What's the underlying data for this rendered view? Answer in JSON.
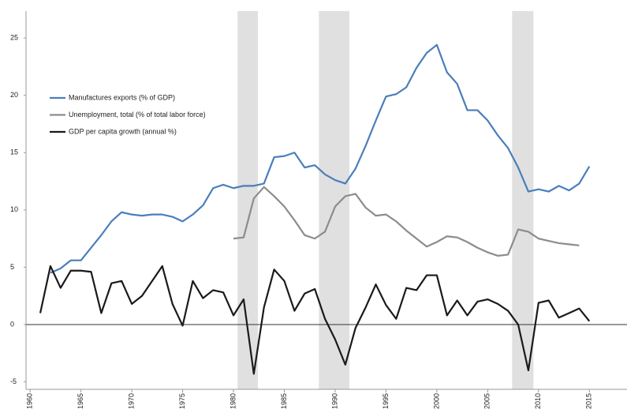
{
  "chart_data": {
    "type": "line",
    "x": [
      1961,
      1962,
      1963,
      1964,
      1965,
      1966,
      1967,
      1968,
      1969,
      1970,
      1971,
      1972,
      1973,
      1974,
      1975,
      1976,
      1977,
      1978,
      1979,
      1980,
      1981,
      1982,
      1983,
      1984,
      1985,
      1986,
      1987,
      1988,
      1989,
      1990,
      1991,
      1992,
      1993,
      1994,
      1995,
      1996,
      1997,
      1998,
      1999,
      2000,
      2001,
      2002,
      2003,
      2004,
      2005,
      2006,
      2007,
      2008,
      2009,
      2010,
      2011,
      2012,
      2013,
      2014,
      2015
    ],
    "series": [
      {
        "name": "Manufactures exports (% of GDP)",
        "color": "#4a7ebb",
        "values": [
          null,
          4.5,
          4.9,
          5.6,
          5.6,
          6.7,
          7.8,
          9.0,
          9.8,
          9.6,
          9.5,
          9.6,
          9.6,
          9.4,
          9.0,
          9.6,
          10.4,
          11.9,
          12.2,
          11.9,
          12.1,
          12.1,
          12.3,
          14.6,
          14.7,
          15.0,
          13.7,
          13.9,
          13.1,
          12.6,
          12.3,
          13.6,
          15.6,
          17.8,
          19.9,
          20.1,
          20.7,
          22.4,
          23.7,
          24.4,
          22.0,
          21.0,
          18.7,
          18.7,
          17.8,
          16.5,
          15.4,
          13.7,
          11.6,
          11.8,
          11.6,
          12.1,
          11.7,
          12.3,
          13.8
        ]
      },
      {
        "name": "Unemployment, total  (% of total labor force)",
        "color": "#8c8c8c",
        "values": [
          null,
          null,
          null,
          null,
          null,
          null,
          null,
          null,
          null,
          null,
          null,
          null,
          null,
          null,
          null,
          null,
          null,
          null,
          null,
          7.5,
          7.6,
          11.0,
          12.0,
          11.2,
          10.3,
          9.1,
          7.8,
          7.5,
          8.1,
          10.3,
          11.2,
          11.4,
          10.2,
          9.5,
          9.6,
          9.0,
          8.2,
          7.5,
          6.8,
          7.2,
          7.7,
          7.6,
          7.2,
          6.7,
          6.3,
          6.0,
          6.1,
          8.3,
          8.1,
          7.5,
          7.3,
          7.1,
          7.0,
          6.9,
          null
        ]
      },
      {
        "name": "GDP per capita growth (annual %)",
        "color": "#1a1a1a",
        "values": [
          1.0,
          5.1,
          3.2,
          4.7,
          4.7,
          4.6,
          1.0,
          3.6,
          3.8,
          1.8,
          2.5,
          3.8,
          5.1,
          1.8,
          -0.1,
          3.8,
          2.3,
          3.0,
          2.8,
          0.8,
          2.2,
          -4.3,
          1.5,
          4.8,
          3.8,
          1.2,
          2.7,
          3.1,
          0.5,
          -1.3,
          -3.5,
          -0.3,
          1.5,
          3.5,
          1.7,
          0.5,
          3.2,
          3.0,
          4.3,
          4.3,
          0.8,
          2.1,
          0.8,
          2.0,
          2.2,
          1.8,
          1.2,
          0.0,
          -4.0,
          1.9,
          2.1,
          0.6,
          1.0,
          1.4,
          0.3
        ]
      }
    ],
    "shaded_ranges": [
      [
        1980.4,
        1982.4
      ],
      [
        1988.4,
        1991.4
      ],
      [
        2007.4,
        2009.5
      ]
    ],
    "xlim": [
      1959.6,
      2018.7
    ],
    "xticks": [
      1960,
      1965,
      1970,
      1975,
      1980,
      1985,
      1990,
      1995,
      2000,
      2005,
      2010,
      2015
    ],
    "ylim": [
      -5.65,
      27.35
    ],
    "yticks": [
      -5,
      0,
      5,
      10,
      15,
      20,
      25
    ],
    "legend": "upper left"
  }
}
